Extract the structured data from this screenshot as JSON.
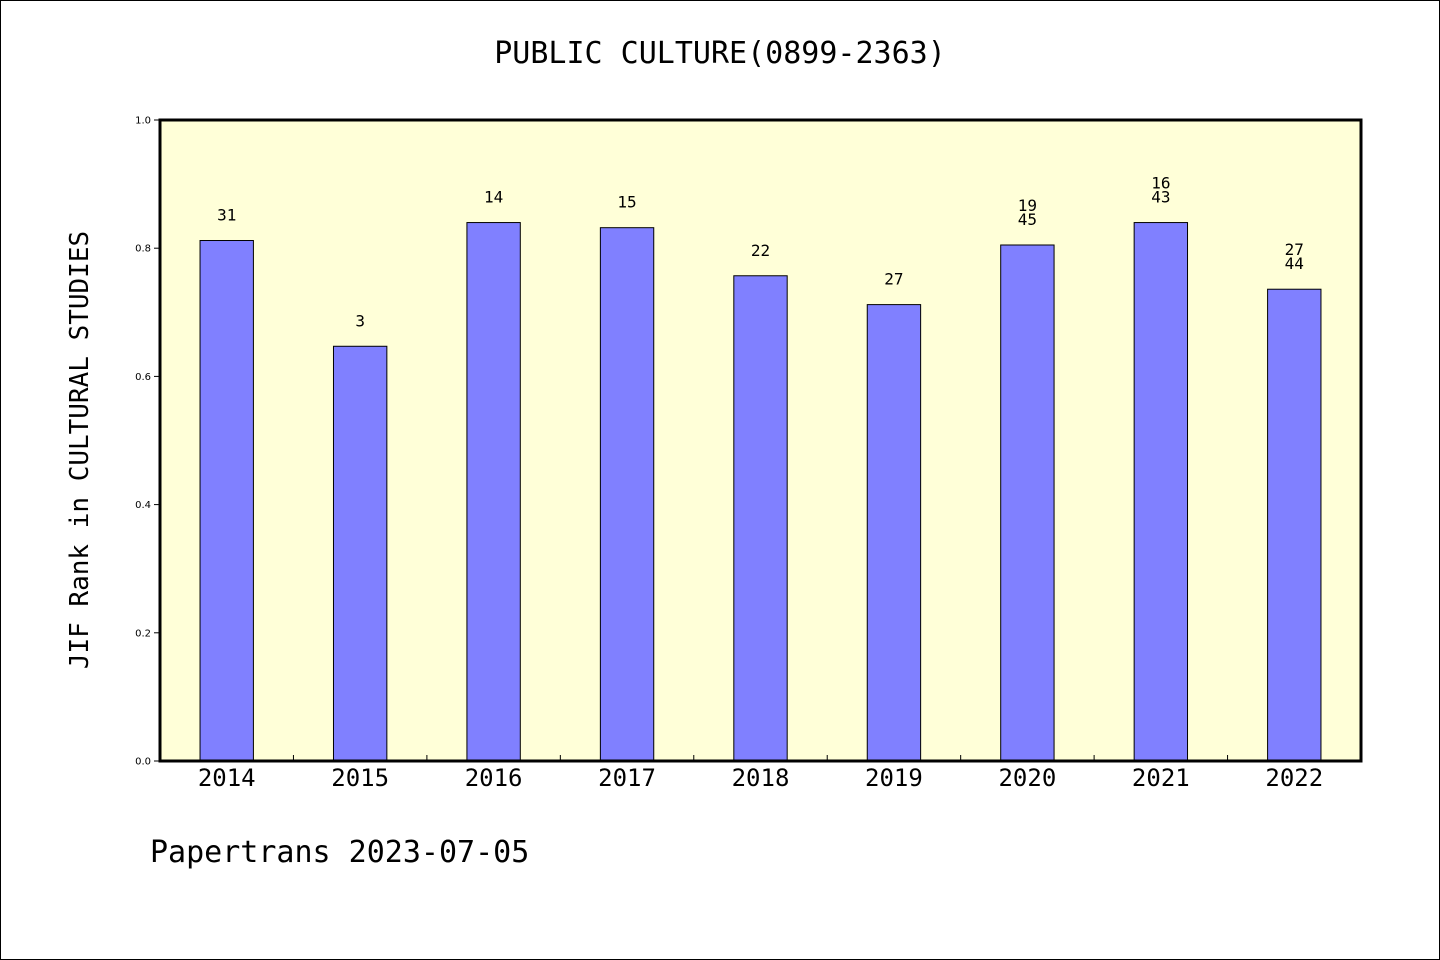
{
  "chart_data": {
    "type": "bar",
    "title": "PUBLIC CULTURE(0899-2363)",
    "ylabel": "JIF Rank in CULTURAL STUDIES",
    "xlabel": "",
    "categories": [
      "2014",
      "2015",
      "2016",
      "2017",
      "2018",
      "2019",
      "2020",
      "2021",
      "2022"
    ],
    "values": [
      0.812,
      0.647,
      0.84,
      0.832,
      0.757,
      0.712,
      0.805,
      0.84,
      0.736
    ],
    "bar_labels": [
      [
        "31"
      ],
      [
        "3"
      ],
      [
        "14"
      ],
      [
        "15"
      ],
      [
        "22"
      ],
      [
        "27"
      ],
      [
        "19",
        "45"
      ],
      [
        "16",
        "43"
      ],
      [
        "27",
        "44"
      ]
    ],
    "ylim": [
      0,
      1.0
    ],
    "yticks": [
      "0.0",
      "0.2",
      "0.4",
      "0.6",
      "0.8",
      "1.0"
    ],
    "grid": false,
    "colors": {
      "bar": "#8080ff",
      "plot_background": "#ffffd8",
      "bar_edge": "#000000"
    }
  },
  "footer": {
    "text": "Papertrans 2023-07-05"
  }
}
